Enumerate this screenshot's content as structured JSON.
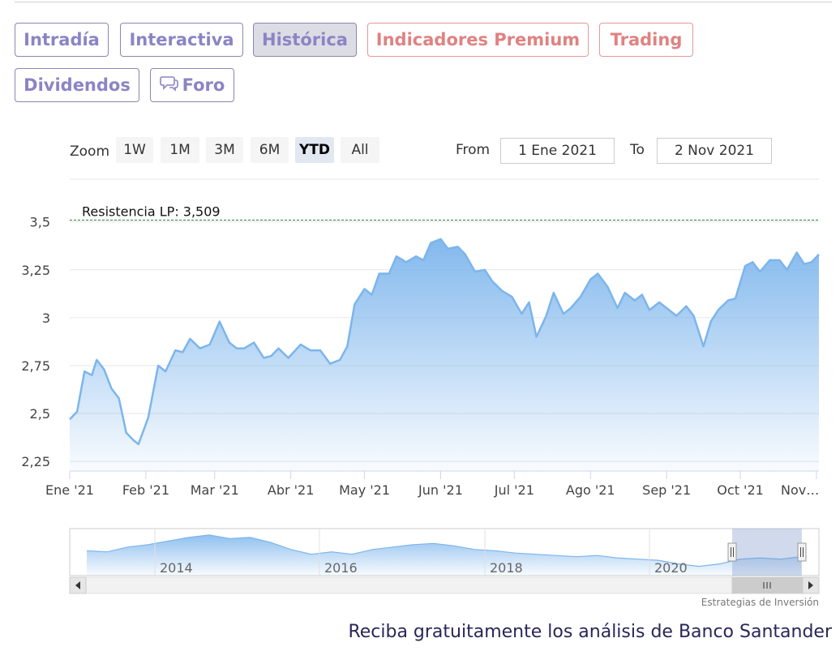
{
  "tabs": [
    {
      "label": "Intradía",
      "state": "normal"
    },
    {
      "label": "Interactiva",
      "state": "normal"
    },
    {
      "label": "Histórica",
      "state": "active"
    },
    {
      "label": "Indicadores Premium",
      "state": "premium"
    },
    {
      "label": "Trading",
      "state": "premium"
    },
    {
      "label": "Dividendos",
      "state": "normal"
    },
    {
      "label": "Foro",
      "icon": "chat-bubbles-icon",
      "state": "normal"
    }
  ],
  "range_selector": {
    "zoom_label": "Zoom",
    "buttons": [
      "1W",
      "1M",
      "3M",
      "6M",
      "YTD",
      "All"
    ],
    "selected": "YTD",
    "from_label": "From",
    "from_value": "1 Ene 2021",
    "to_label": "To",
    "to_value": "2 Nov 2021"
  },
  "colors": {
    "line": "#7cb5ec",
    "area_top": "#7cb5ec",
    "resistance": "#2e7d32",
    "tab_text": "#8b84c4",
    "premium_text": "#e08282",
    "footer_text": "#2a2658"
  },
  "chart_data": {
    "type": "area",
    "title": "",
    "xlabel": "",
    "ylabel": "",
    "ylim": [
      2.2,
      3.6
    ],
    "yticks": [
      2.25,
      2.5,
      2.75,
      3,
      3.25,
      3.5
    ],
    "ytick_labels": [
      "2,25",
      "2,5",
      "2,75",
      "3",
      "3,25",
      "3,5"
    ],
    "xtick_labels": [
      "Ene '21",
      "Feb '21",
      "Mar '21",
      "Abr '21",
      "May '21",
      "Jun '21",
      "Jul '21",
      "Ago '21",
      "Sep '21",
      "Oct '21",
      "Nov…"
    ],
    "xtick_dates": [
      "2021-01-01",
      "2021-02-01",
      "2021-03-01",
      "2021-04-01",
      "2021-05-01",
      "2021-06-01",
      "2021-07-01",
      "2021-08-01",
      "2021-09-01",
      "2021-10-01",
      "2021-11-01"
    ],
    "xlim": [
      "2021-01-01",
      "2021-11-02"
    ],
    "grid": true,
    "legend": "none",
    "annotations": [
      {
        "type": "horizontal-line",
        "y": 3.509,
        "label": "Resistencia LP: 3,509",
        "style": "dashed"
      }
    ],
    "series": [
      {
        "x": [
          "2021-01-01",
          "2021-01-04",
          "2021-01-07",
          "2021-01-10",
          "2021-01-12",
          "2021-01-15",
          "2021-01-18",
          "2021-01-21",
          "2021-01-24",
          "2021-01-27",
          "2021-01-29",
          "2021-02-02",
          "2021-02-06",
          "2021-02-09",
          "2021-02-13",
          "2021-02-16",
          "2021-02-19",
          "2021-02-23",
          "2021-02-27",
          "2021-03-03",
          "2021-03-07",
          "2021-03-10",
          "2021-03-13",
          "2021-03-17",
          "2021-03-21",
          "2021-03-24",
          "2021-03-27",
          "2021-03-31",
          "2021-04-05",
          "2021-04-09",
          "2021-04-13",
          "2021-04-17",
          "2021-04-21",
          "2021-04-24",
          "2021-04-27",
          "2021-05-01",
          "2021-05-04",
          "2021-05-07",
          "2021-05-11",
          "2021-05-14",
          "2021-05-18",
          "2021-05-22",
          "2021-05-25",
          "2021-05-28",
          "2021-06-01",
          "2021-06-04",
          "2021-06-08",
          "2021-06-11",
          "2021-06-15",
          "2021-06-19",
          "2021-06-22",
          "2021-06-26",
          "2021-06-30",
          "2021-07-04",
          "2021-07-07",
          "2021-07-10",
          "2021-07-14",
          "2021-07-17",
          "2021-07-21",
          "2021-07-24",
          "2021-07-28",
          "2021-08-01",
          "2021-08-04",
          "2021-08-08",
          "2021-08-12",
          "2021-08-15",
          "2021-08-19",
          "2021-08-22",
          "2021-08-25",
          "2021-08-29",
          "2021-09-02",
          "2021-09-05",
          "2021-09-09",
          "2021-09-12",
          "2021-09-16",
          "2021-09-19",
          "2021-09-22",
          "2021-09-26",
          "2021-09-29",
          "2021-10-03",
          "2021-10-06",
          "2021-10-09",
          "2021-10-13",
          "2021-10-17",
          "2021-10-20",
          "2021-10-24",
          "2021-10-27",
          "2021-10-30",
          "2021-11-02"
        ],
        "values": [
          2.47,
          2.51,
          2.72,
          2.7,
          2.78,
          2.73,
          2.63,
          2.58,
          2.4,
          2.36,
          2.34,
          2.48,
          2.75,
          2.72,
          2.83,
          2.82,
          2.89,
          2.84,
          2.86,
          2.98,
          2.87,
          2.84,
          2.84,
          2.87,
          2.79,
          2.8,
          2.84,
          2.79,
          2.86,
          2.83,
          2.83,
          2.76,
          2.78,
          2.85,
          3.07,
          3.15,
          3.12,
          3.23,
          3.23,
          3.32,
          3.29,
          3.32,
          3.3,
          3.39,
          3.41,
          3.36,
          3.37,
          3.33,
          3.24,
          3.25,
          3.19,
          3.14,
          3.11,
          3.02,
          3.08,
          2.9,
          3.01,
          3.13,
          3.02,
          3.05,
          3.11,
          3.2,
          3.23,
          3.16,
          3.05,
          3.13,
          3.09,
          3.12,
          3.04,
          3.08,
          3.04,
          3.01,
          3.06,
          3.01,
          2.85,
          2.98,
          3.04,
          3.09,
          3.1,
          3.27,
          3.29,
          3.24,
          3.3,
          3.3,
          3.25,
          3.34,
          3.28,
          3.29,
          3.33
        ]
      }
    ],
    "navigator": {
      "type": "area",
      "tick_labels": [
        "2014",
        "2016",
        "2018",
        "2020"
      ],
      "values": [
        5.3,
        5.2,
        5.6,
        5.8,
        6.1,
        6.4,
        6.6,
        6.3,
        6.4,
        6.0,
        5.4,
        5.0,
        5.2,
        5.0,
        5.4,
        5.6,
        5.8,
        5.9,
        5.7,
        5.4,
        5.3,
        5.1,
        5.0,
        4.9,
        4.8,
        4.9,
        4.7,
        4.6,
        4.5,
        4.2,
        4.0,
        4.2,
        4.6,
        4.7,
        4.6,
        4.8
      ],
      "selected_range": [
        "2021-01-01",
        "2021-11-02"
      ]
    }
  },
  "credit": "Estrategias de Inversión",
  "footer": "Reciba gratuitamente los análisis de Banco Santander"
}
